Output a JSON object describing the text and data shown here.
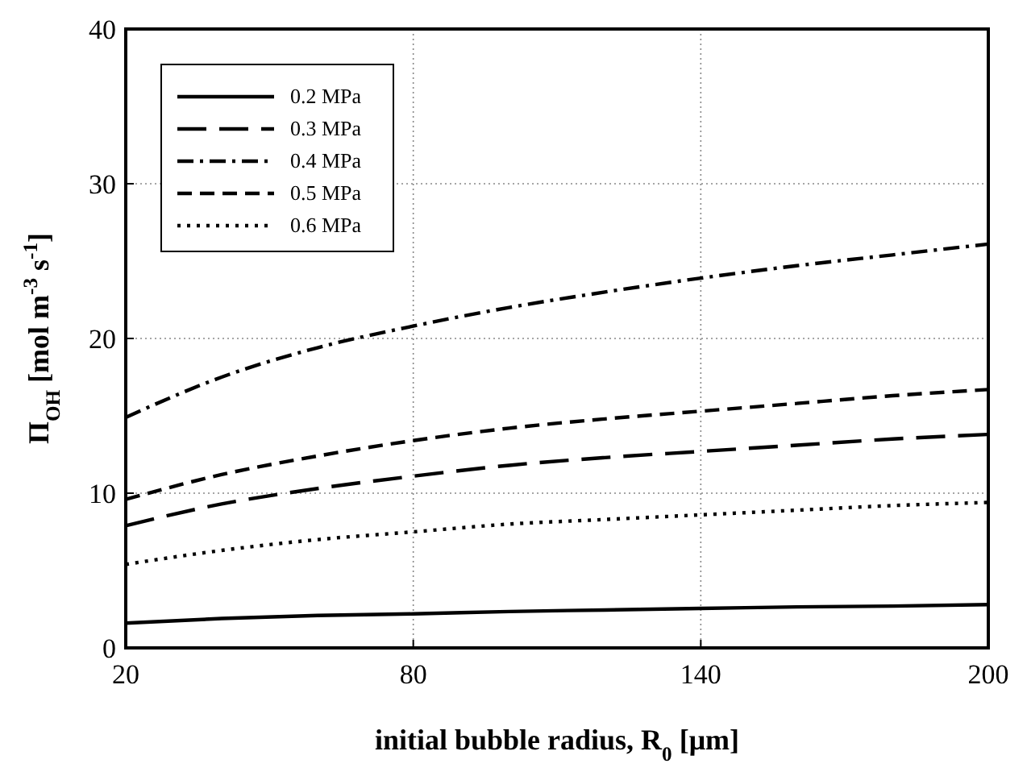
{
  "chart_data": {
    "type": "line",
    "xlabel": "initial bubble radius, R$_{0}$ [μm]",
    "ylabel": "Π$_{OH}$ [mol m$^{-3}$ s$^{-1}$]",
    "x": [
      20,
      40,
      60,
      80,
      100,
      120,
      140,
      160,
      180,
      200
    ],
    "xlim": [
      20,
      200
    ],
    "xticks": [
      20,
      80,
      140,
      200
    ],
    "ylim": [
      0,
      40
    ],
    "yticks": [
      0,
      10,
      20,
      30,
      40
    ],
    "grid": true,
    "legend": "top left",
    "marker": "none",
    "series": [
      {
        "name": "0.2 MPa",
        "color": "#000000",
        "line_style": "solid",
        "values": [
          1.6,
          1.9,
          2.1,
          2.2,
          2.35,
          2.45,
          2.55,
          2.65,
          2.7,
          2.8
        ]
      },
      {
        "name": "0.3 MPa",
        "color": "#000000",
        "line_style": "longdash",
        "values": [
          7.9,
          9.3,
          10.3,
          11.1,
          11.8,
          12.3,
          12.7,
          13.1,
          13.5,
          13.8
        ]
      },
      {
        "name": "0.4 MPa",
        "color": "#000000",
        "line_style": "dashdot",
        "values": [
          14.9,
          17.5,
          19.4,
          20.8,
          22.0,
          23.0,
          23.9,
          24.7,
          25.4,
          26.1
        ]
      },
      {
        "name": "0.5 MPa",
        "color": "#000000",
        "line_style": "dashed",
        "values": [
          9.6,
          11.2,
          12.4,
          13.4,
          14.2,
          14.8,
          15.3,
          15.8,
          16.3,
          16.7
        ]
      },
      {
        "name": "0.6 MPa",
        "color": "#000000",
        "line_style": "dotted",
        "values": [
          5.4,
          6.3,
          7.0,
          7.5,
          8.0,
          8.3,
          8.6,
          8.9,
          9.2,
          9.4
        ]
      }
    ]
  }
}
